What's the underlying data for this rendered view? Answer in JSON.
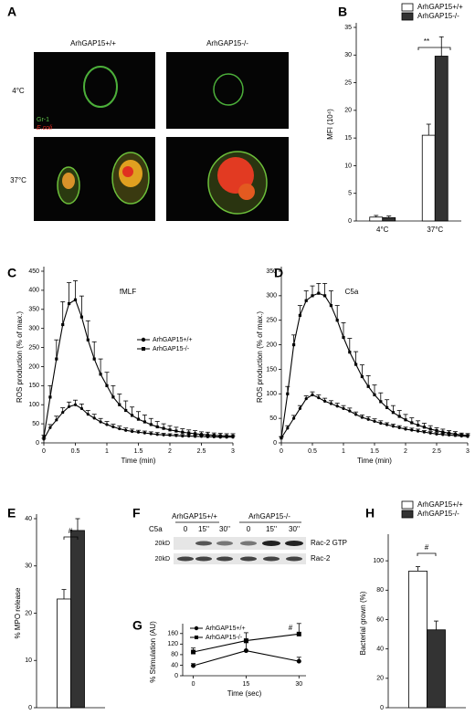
{
  "panel_labels": [
    "A",
    "B",
    "C",
    "D",
    "E",
    "F",
    "G",
    "H"
  ],
  "panel_a": {
    "column_labels": [
      "ArhGAP15+/+",
      "ArhGAP15-/-"
    ],
    "row_labels": [
      "4°C",
      "37°C"
    ],
    "stain_labels": [
      "Gr-1",
      "E.coli"
    ]
  },
  "panel_f": {
    "group_labels": [
      "ArhGAP15+/+",
      "ArhGAP15-/-"
    ],
    "treatment": "C5a",
    "lanes": [
      "0",
      "15''",
      "30''",
      "0",
      "15''",
      "30''"
    ],
    "size_markers": [
      "20kD",
      "20kD"
    ],
    "bands": [
      "Rac-2 GTP",
      "Rac-2"
    ]
  },
  "chart_data": [
    {
      "type": "bar",
      "y_label": "MFI (10⁴)",
      "categories": [
        "4°C",
        "37°C"
      ],
      "series": [
        {
          "name": "ArhGAP15+/+",
          "color": "#ffffff",
          "values": [
            0.7,
            15.5
          ],
          "errors": [
            0.3,
            2
          ]
        },
        {
          "name": "ArhGAP15-/-",
          "color": "#333333",
          "values": [
            0.6,
            29.8
          ],
          "errors": [
            0.3,
            3.5
          ]
        }
      ],
      "ylim": [
        0,
        35
      ],
      "yticks": [
        0,
        5,
        10,
        15,
        20,
        25,
        30,
        35
      ],
      "annotations": [
        "**"
      ],
      "legend": "above"
    },
    {
      "type": "line",
      "y_label": "ROS production (% of max.)",
      "x_label": "Time (min)",
      "annotations": [
        "fMLF"
      ],
      "legend": "center-right",
      "x": [
        0,
        0.1,
        0.2,
        0.3,
        0.4,
        0.5,
        0.6,
        0.7,
        0.8,
        0.9,
        1,
        1.1,
        1.2,
        1.3,
        1.4,
        1.5,
        1.6,
        1.7,
        1.8,
        1.9,
        2,
        2.1,
        2.2,
        2.3,
        2.4,
        2.5,
        2.6,
        2.7,
        2.8,
        2.9,
        3
      ],
      "series": [
        {
          "name": "ArhGAP15+/+",
          "color": "#000000",
          "marker": "circle",
          "values": [
            10,
            40,
            60,
            80,
            95,
            100,
            90,
            75,
            65,
            55,
            48,
            42,
            37,
            33,
            30,
            28,
            26,
            24,
            22,
            21,
            20,
            19,
            18,
            18,
            17,
            17,
            16,
            16,
            15,
            15,
            15
          ],
          "errors": [
            2,
            8,
            10,
            12,
            12,
            12,
            12,
            10,
            10,
            9,
            8,
            7,
            7,
            6,
            6,
            5,
            5,
            5,
            5,
            4,
            4,
            4,
            4,
            4,
            4,
            3,
            3,
            3,
            3,
            3,
            3
          ]
        },
        {
          "name": "ArhGAP15-/-",
          "color": "#000000",
          "marker": "square",
          "values": [
            15,
            120,
            220,
            310,
            365,
            375,
            330,
            270,
            220,
            180,
            150,
            120,
            100,
            85,
            72,
            62,
            55,
            48,
            42,
            38,
            34,
            31,
            28,
            26,
            24,
            22,
            21,
            20,
            19,
            18,
            18
          ],
          "errors": [
            5,
            30,
            50,
            60,
            55,
            50,
            55,
            50,
            45,
            40,
            35,
            30,
            28,
            25,
            22,
            20,
            18,
            16,
            14,
            12,
            11,
            10,
            9,
            8,
            8,
            7,
            7,
            6,
            6,
            6,
            6
          ]
        }
      ],
      "xlim": [
        0,
        3
      ],
      "xticks": [
        0,
        0.5,
        1,
        1.5,
        2,
        2.5,
        3
      ],
      "ylim": [
        0,
        450
      ],
      "yticks": [
        0,
        50,
        100,
        150,
        200,
        250,
        300,
        350,
        400,
        450
      ]
    },
    {
      "type": "line",
      "y_label": "ROS production (% of max.)",
      "x_label": "Time (min)",
      "annotations": [
        "C5a"
      ],
      "x": [
        0,
        0.1,
        0.2,
        0.3,
        0.4,
        0.5,
        0.6,
        0.7,
        0.8,
        0.9,
        1,
        1.1,
        1.2,
        1.3,
        1.4,
        1.5,
        1.6,
        1.7,
        1.8,
        1.9,
        2,
        2.1,
        2.2,
        2.3,
        2.4,
        2.5,
        2.6,
        2.7,
        2.8,
        2.9,
        3
      ],
      "series": [
        {
          "color": "#000000",
          "marker": "circle",
          "values": [
            10,
            30,
            50,
            70,
            90,
            98,
            92,
            85,
            80,
            75,
            70,
            65,
            58,
            52,
            48,
            44,
            40,
            37,
            34,
            31,
            28,
            26,
            24,
            22,
            20,
            18,
            17,
            16,
            15,
            14,
            13
          ],
          "errors": [
            2,
            5,
            6,
            6,
            6,
            6,
            6,
            6,
            6,
            6,
            6,
            6,
            5,
            5,
            5,
            5,
            5,
            4,
            4,
            4,
            4,
            4,
            4,
            3,
            3,
            3,
            3,
            3,
            3,
            3,
            3
          ]
        },
        {
          "color": "#000000",
          "marker": "square",
          "values": [
            10,
            100,
            200,
            260,
            290,
            300,
            305,
            300,
            280,
            250,
            215,
            185,
            160,
            135,
            115,
            98,
            84,
            72,
            62,
            54,
            47,
            41,
            36,
            32,
            28,
            25,
            22,
            20,
            18,
            16,
            15
          ],
          "errors": [
            3,
            15,
            20,
            20,
            20,
            20,
            20,
            25,
            30,
            30,
            30,
            28,
            26,
            24,
            22,
            20,
            18,
            16,
            14,
            12,
            11,
            10,
            9,
            8,
            7,
            6,
            6,
            5,
            5,
            4,
            4
          ]
        }
      ],
      "xlim": [
        0,
        3
      ],
      "xticks": [
        0,
        0.5,
        1,
        1.5,
        2,
        2.5,
        3
      ],
      "ylim": [
        0,
        350
      ],
      "yticks": [
        0,
        50,
        100,
        150,
        200,
        250,
        300,
        350
      ]
    },
    {
      "type": "bar",
      "y_label": "% MPO release",
      "categories": [
        null
      ],
      "series": [
        {
          "color": "#ffffff",
          "values": [
            23
          ],
          "errors": [
            2
          ]
        },
        {
          "color": "#333333",
          "values": [
            37.5
          ],
          "errors": [
            2.5
          ]
        }
      ],
      "ylim": [
        0,
        40
      ],
      "yticks": [
        0,
        10,
        20,
        30,
        40
      ],
      "annotations": [
        "#"
      ]
    },
    {
      "type": "line",
      "y_label": "% Stimulation (AU)",
      "x_label": "Time (sec)",
      "annotations": [
        "#"
      ],
      "legend": "top-left",
      "x": [
        0,
        15,
        30
      ],
      "series": [
        {
          "name": "ArhGAP15+/+",
          "color": "#000000",
          "marker": "circle",
          "values": [
            38,
            95,
            55
          ],
          "errors": [
            8,
            30,
            15
          ]
        },
        {
          "name": "ArhGAP15-/-",
          "color": "#000000",
          "marker": "square",
          "values": [
            90,
            133,
            158
          ],
          "errors": [
            15,
            30,
            40
          ]
        }
      ],
      "xlim": [
        -3,
        32
      ],
      "xticks": [
        0,
        15,
        30
      ],
      "ylim": [
        0,
        180
      ],
      "yticks": [
        0,
        40,
        80,
        120,
        160
      ]
    },
    {
      "type": "bar",
      "y_label": "Bacterial grown (%)",
      "categories": [
        null
      ],
      "legend": "above",
      "series": [
        {
          "name": "ArhGAP15+/+",
          "color": "#ffffff",
          "values": [
            93
          ],
          "errors": [
            3
          ]
        },
        {
          "name": "ArhGAP15-/-",
          "color": "#333333",
          "values": [
            53
          ],
          "errors": [
            6
          ]
        }
      ],
      "ylim": [
        0,
        115
      ],
      "yticks": [
        0,
        20,
        40,
        60,
        80,
        100
      ],
      "annotations": [
        "#"
      ]
    }
  ]
}
